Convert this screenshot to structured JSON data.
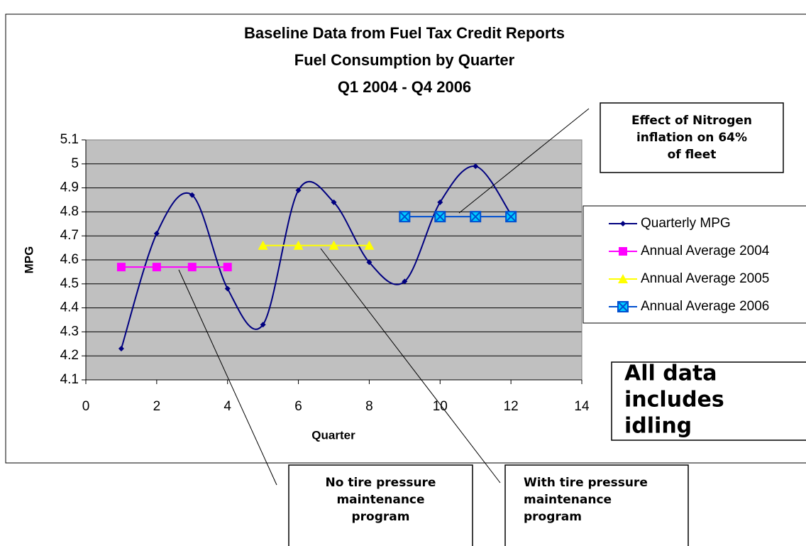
{
  "chart_data": {
    "type": "line",
    "title": [
      "Baseline Data from Fuel Tax Credit Reports",
      "Fuel Consumption by Quarter",
      "Q1 2004 - Q4 2006"
    ],
    "x_label": "Quarter",
    "y_label": "MPG",
    "xlim": [
      0,
      14
    ],
    "xticks": [
      0,
      2,
      4,
      6,
      8,
      10,
      12,
      14
    ],
    "ylim": [
      4.1,
      5.1
    ],
    "yticks": [
      4.1,
      4.2,
      4.3,
      4.4,
      4.5,
      4.6,
      4.7,
      4.8,
      4.9,
      5,
      5.1
    ],
    "grid": true,
    "legend": "right",
    "series": [
      {
        "name": "Quarterly MPG",
        "color": "#000080",
        "marker": "diamond",
        "smooth": true,
        "x": [
          1,
          2,
          3,
          4,
          5,
          6,
          7,
          8,
          9,
          10,
          11,
          12
        ],
        "values": [
          4.23,
          4.71,
          4.87,
          4.48,
          4.33,
          4.89,
          4.84,
          4.59,
          4.51,
          4.84,
          4.99,
          4.79
        ]
      },
      {
        "name": "Annual Average 2004",
        "color": "#ff00ff",
        "marker": "square",
        "smooth": false,
        "x": [
          1,
          2,
          3,
          4
        ],
        "values": [
          4.57,
          4.57,
          4.57,
          4.57
        ]
      },
      {
        "name": "Annual Average 2005",
        "color": "#ffff00",
        "marker": "triangle",
        "smooth": false,
        "x": [
          5,
          6,
          7,
          8
        ],
        "values": [
          4.66,
          4.66,
          4.66,
          4.66
        ]
      },
      {
        "name": "Annual Average 2006",
        "color": "#0050d0",
        "marker": "xsquare",
        "smooth": false,
        "x": [
          9,
          10,
          11,
          12
        ],
        "values": [
          4.78,
          4.78,
          4.78,
          4.78
        ]
      }
    ],
    "annotations": [
      {
        "lines": [
          "Effect of Nitrogen",
          "inflation on 64%",
          "of fleet"
        ]
      },
      {
        "lines": [
          "All data",
          "includes",
          "idling"
        ]
      },
      {
        "lines": [
          "No tire pressure",
          "maintenance",
          "program"
        ]
      },
      {
        "lines": [
          "With tire pressure",
          "maintenance",
          "program"
        ]
      }
    ]
  }
}
